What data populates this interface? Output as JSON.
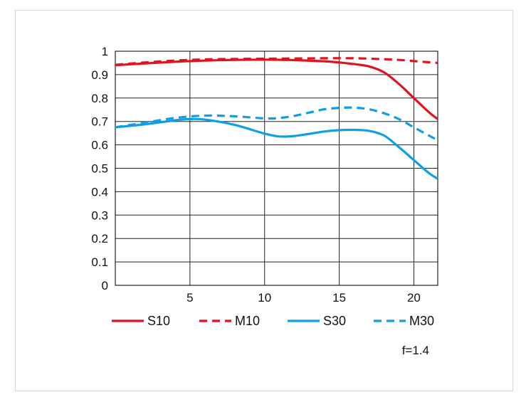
{
  "chart_data": {
    "type": "line",
    "title": "",
    "xlabel": "",
    "ylabel": "",
    "xlim": [
      0,
      21.6
    ],
    "ylim": [
      0,
      1
    ],
    "grid": true,
    "x_ticks": [
      5,
      10,
      15,
      20
    ],
    "x_tick_labels": [
      "5",
      "10",
      "15",
      "20"
    ],
    "y_ticks": [
      0,
      0.1,
      0.2,
      0.3,
      0.4,
      0.5,
      0.6,
      0.7,
      0.8,
      0.9,
      1
    ],
    "y_tick_labels": [
      "0",
      "0.1",
      "0.2",
      "0.3",
      "0.4",
      "0.5",
      "0.6",
      "0.7",
      "0.8",
      "0.9",
      "1"
    ],
    "legend_position": "bottom",
    "annotation": "f=1.4",
    "series": [
      {
        "name": "S10",
        "color": "#e0141e",
        "dash": "solid",
        "x": [
          0,
          2,
          4,
          6,
          8,
          10,
          12,
          14,
          15,
          16,
          17,
          18,
          19,
          20,
          21,
          21.6
        ],
        "y": [
          0.94,
          0.948,
          0.955,
          0.96,
          0.963,
          0.964,
          0.962,
          0.957,
          0.952,
          0.945,
          0.935,
          0.91,
          0.86,
          0.8,
          0.74,
          0.71
        ]
      },
      {
        "name": "M10",
        "color": "#e0141e",
        "dash": "dashed",
        "x": [
          0,
          2,
          4,
          6,
          8,
          10,
          12,
          14,
          16,
          18,
          19,
          20,
          21,
          21.6
        ],
        "y": [
          0.942,
          0.952,
          0.96,
          0.965,
          0.967,
          0.968,
          0.969,
          0.97,
          0.97,
          0.966,
          0.963,
          0.958,
          0.953,
          0.95
        ]
      },
      {
        "name": "S30",
        "color": "#0ea0e4",
        "dash": "solid",
        "x": [
          0,
          2,
          4,
          5,
          6,
          8,
          10,
          11,
          12,
          14,
          15,
          16,
          17,
          18,
          19,
          20,
          21,
          21.6
        ],
        "y": [
          0.675,
          0.688,
          0.705,
          0.71,
          0.708,
          0.685,
          0.648,
          0.636,
          0.638,
          0.657,
          0.663,
          0.664,
          0.66,
          0.64,
          0.59,
          0.535,
          0.48,
          0.455
        ]
      },
      {
        "name": "M30",
        "color": "#0ea0e4",
        "dash": "dashed",
        "x": [
          0,
          2,
          4,
          6,
          8,
          10,
          11,
          12,
          13,
          14,
          15,
          16,
          17,
          18,
          19,
          20,
          21,
          21.6
        ],
        "y": [
          0.675,
          0.695,
          0.715,
          0.725,
          0.722,
          0.713,
          0.715,
          0.724,
          0.738,
          0.752,
          0.758,
          0.759,
          0.752,
          0.735,
          0.71,
          0.675,
          0.64,
          0.62
        ]
      }
    ]
  }
}
